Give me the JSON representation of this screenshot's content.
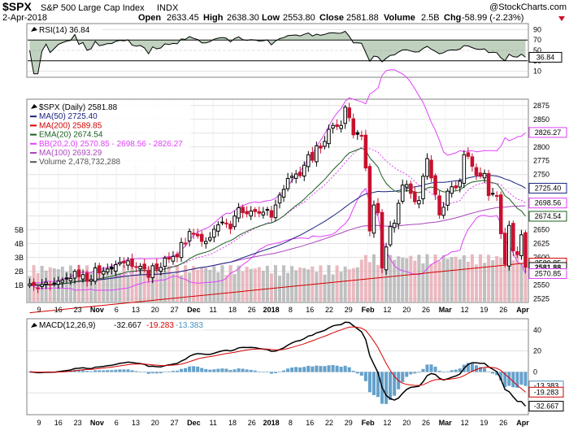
{
  "header": {
    "symbol": "$SPX",
    "name": "S&P 500 Large Cap Index",
    "exchange": "INDX",
    "watermark": "@StockCharts.com",
    "date": "2-Apr-2018",
    "open_label": "Open",
    "open": "2633.45",
    "high_label": "High",
    "high": "2638.30",
    "low_label": "Low",
    "low": "2553.80",
    "close_label": "Close",
    "close": "2581.88",
    "volume_label": "Volume",
    "volume": "2.5B",
    "chg_label": "Chg",
    "chg": "-58.99 (-2.23%)"
  },
  "colors": {
    "up": "#000000",
    "down": "#c8102e",
    "ma50": "#1a237e",
    "ma200": "#d50000",
    "ema20": "#1b5e20",
    "bb": "#e040fb",
    "ma100": "#ab47bc",
    "rsi_fill": "#4a7a4a",
    "macd_hist": "#4a90c2",
    "volume": "#b0b0b0"
  },
  "rsi_panel": {
    "legend": "RSI(14) 36.84",
    "axis": [
      "90",
      "70",
      "50",
      "30",
      "10"
    ],
    "current": "36.84"
  },
  "price_panel": {
    "legend": [
      {
        "text": "$SPX (Daily) 2581.88",
        "color": "#000000"
      },
      {
        "text": "MA(50) 2725.40",
        "color": "#1a237e"
      },
      {
        "text": "MA(200) 2589.85",
        "color": "#d50000"
      },
      {
        "text": "EMA(20) 2674.54",
        "color": "#1b5e20"
      },
      {
        "text": "BB(20,2.0) 2570.85 - 2698.56 - 2826.27",
        "color": "#e040fb"
      },
      {
        "text": "MA(100) 2693.29",
        "color": "#ab47bc"
      },
      {
        "text": "Volume 2,478,732,288",
        "color": "#555555"
      }
    ],
    "axis": [
      "2875",
      "2850",
      "2825",
      "2800",
      "2775",
      "2750",
      "2725",
      "2700",
      "2675",
      "2650",
      "2625",
      "2600",
      "2575",
      "2550",
      "2525"
    ],
    "tags": [
      {
        "text": "2826.27",
        "value": 2826.27
      },
      {
        "text": "2725.40",
        "value": 2725.4
      },
      {
        "text": "2698.56",
        "value": 2698.56
      },
      {
        "text": "2674.54",
        "value": 2674.54
      },
      {
        "text": "2589.85",
        "value": 2589.85
      },
      {
        "text": "2581.88",
        "value": 2581.88
      },
      {
        "text": "2570.85",
        "value": 2570.85
      }
    ],
    "volume_axis": [
      "5B",
      "4B",
      "3B",
      "2B",
      "1B"
    ]
  },
  "macd_panel": {
    "legend": {
      "name": "MACD(12,26,9)",
      "macd": "-32.667",
      "signal": "-19.283",
      "hist": "-13.383"
    },
    "axis": [
      "40",
      "20",
      "0",
      "-20"
    ],
    "tags": [
      "-13.383",
      "-19.283",
      "-32.667"
    ]
  },
  "x_axis": {
    "labels": [
      "9",
      "16",
      "23",
      "Nov",
      "6",
      "13",
      "20",
      "27",
      "Dec",
      "11",
      "18",
      "26",
      "2018",
      "8",
      "16",
      "22",
      "29",
      "Feb",
      "12",
      "20",
      "26",
      "Mar",
      "12",
      "19",
      "26",
      "Apr"
    ],
    "bold": [
      "Nov",
      "Dec",
      "2018",
      "Feb",
      "Mar",
      "Apr"
    ]
  },
  "chart_data": {
    "type": "candlestick",
    "title": "$SPX S&P 500 Large Cap Index",
    "x": [
      "2017-10-05",
      "2017-10-06",
      "2017-10-09",
      "2017-10-10",
      "2017-10-11",
      "2017-10-12",
      "2017-10-13",
      "2017-10-16",
      "2017-10-17",
      "2017-10-18",
      "2017-10-19",
      "2017-10-20",
      "2017-10-23",
      "2017-10-24",
      "2017-10-25",
      "2017-10-26",
      "2017-10-27",
      "2017-10-30",
      "2017-10-31",
      "2017-11-01",
      "2017-11-02",
      "2017-11-03",
      "2017-11-06",
      "2017-11-07",
      "2017-11-08",
      "2017-11-09",
      "2017-11-10",
      "2017-11-13",
      "2017-11-14",
      "2017-11-15",
      "2017-11-16",
      "2017-11-17",
      "2017-11-20",
      "2017-11-21",
      "2017-11-22",
      "2017-11-24",
      "2017-11-27",
      "2017-11-28",
      "2017-11-29",
      "2017-11-30",
      "2017-12-01",
      "2017-12-04",
      "2017-12-05",
      "2017-12-06",
      "2017-12-07",
      "2017-12-08",
      "2017-12-11",
      "2017-12-12",
      "2017-12-13",
      "2017-12-14",
      "2017-12-15",
      "2017-12-18",
      "2017-12-19",
      "2017-12-20",
      "2017-12-21",
      "2017-12-22",
      "2017-12-26",
      "2017-12-27",
      "2017-12-28",
      "2017-12-29",
      "2018-01-02",
      "2018-01-03",
      "2018-01-04",
      "2018-01-05",
      "2018-01-08",
      "2018-01-09",
      "2018-01-10",
      "2018-01-11",
      "2018-01-12",
      "2018-01-16",
      "2018-01-17",
      "2018-01-18",
      "2018-01-19",
      "2018-01-22",
      "2018-01-23",
      "2018-01-24",
      "2018-01-25",
      "2018-01-26",
      "2018-01-29",
      "2018-01-30",
      "2018-01-31",
      "2018-02-01",
      "2018-02-02",
      "2018-02-05",
      "2018-02-06",
      "2018-02-07",
      "2018-02-08",
      "2018-02-09",
      "2018-02-12",
      "2018-02-13",
      "2018-02-14",
      "2018-02-15",
      "2018-02-16",
      "2018-02-20",
      "2018-02-21",
      "2018-02-22",
      "2018-02-23",
      "2018-02-26",
      "2018-02-27",
      "2018-02-28",
      "2018-03-01",
      "2018-03-02",
      "2018-03-05",
      "2018-03-06",
      "2018-03-07",
      "2018-03-08",
      "2018-03-09",
      "2018-03-12",
      "2018-03-13",
      "2018-03-14",
      "2018-03-15",
      "2018-03-16",
      "2018-03-19",
      "2018-03-20",
      "2018-03-21",
      "2018-03-22",
      "2018-03-23",
      "2018-03-26",
      "2018-03-27",
      "2018-03-28",
      "2018-03-29",
      "2018-04-02"
    ],
    "close": [
      2552,
      2549,
      2545,
      2551,
      2555,
      2550,
      2553,
      2557,
      2559,
      2561,
      2562,
      2575,
      2565,
      2569,
      2557,
      2560,
      2581,
      2572,
      2575,
      2579,
      2579,
      2587,
      2591,
      2590,
      2594,
      2584,
      2582,
      2584,
      2579,
      2564,
      2585,
      2579,
      2582,
      2599,
      2597,
      2602,
      2601,
      2627,
      2626,
      2647,
      2642,
      2639,
      2629,
      2629,
      2636,
      2651,
      2659,
      2664,
      2662,
      2652,
      2675,
      2690,
      2681,
      2679,
      2684,
      2683,
      2680,
      2682,
      2687,
      2673,
      2695,
      2713,
      2723,
      2743,
      2747,
      2751,
      2748,
      2767,
      2786,
      2776,
      2802,
      2798,
      2810,
      2832,
      2839,
      2837,
      2839,
      2872,
      2853,
      2822,
      2823,
      2821,
      2762,
      2648,
      2695,
      2681,
      2581,
      2619,
      2656,
      2662,
      2698,
      2731,
      2732,
      2716,
      2701,
      2703,
      2747,
      2779,
      2744,
      2714,
      2677,
      2691,
      2720,
      2728,
      2726,
      2738,
      2786,
      2783,
      2765,
      2749,
      2747,
      2752,
      2712,
      2716,
      2711,
      2643,
      2588,
      2658,
      2612,
      2605,
      2641,
      2582
    ],
    "ma50_last": 2725.4,
    "ma200_last": 2589.85,
    "ema20_last": 2674.54,
    "bb_lower": 2570.85,
    "bb_mid": 2698.56,
    "bb_upper": 2826.27,
    "ma100_last": 2693.29,
    "rsi_last": 36.84,
    "macd_last": -32.667,
    "signal_last": -19.283,
    "hist_last": -13.383,
    "volume_last": 2478732288,
    "ylim_price": [
      2520,
      2885
    ],
    "ylim_rsi": [
      0,
      100
    ],
    "ylim_macd": [
      -40,
      50
    ]
  }
}
